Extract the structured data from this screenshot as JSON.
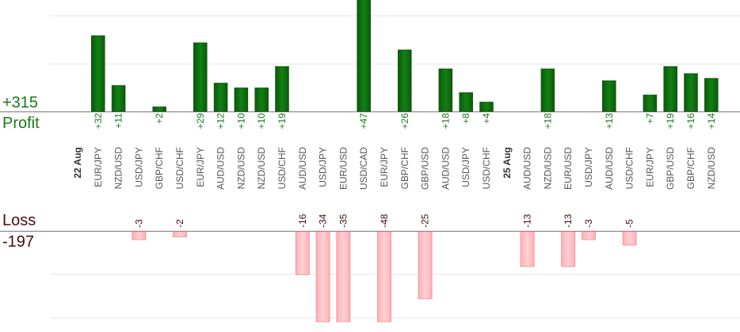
{
  "summary": {
    "profit_total": "+315",
    "profit_label": "Profit",
    "loss_label": "Loss",
    "loss_total": "-197"
  },
  "colors": {
    "profit_bar": "#0e6b0e",
    "profit_text": "#1a7a1a",
    "loss_bar": "#ffc0c4",
    "loss_bar_edge": "#ee8a92",
    "loss_text": "#3a1010",
    "loss_label": "#4a0a0a",
    "grid": "#e6e6e6",
    "axis": "#777777",
    "category_text": "#555555",
    "date_text": "#333333"
  },
  "chart_data": {
    "type": "bar",
    "title": "",
    "categories": [
      "22 Aug",
      "EUR/JPY",
      "NZD/USD",
      "USD/JPY",
      "GBP/CHF",
      "USD/CHF",
      "EUR/JPY",
      "AUD/USD",
      "NZD/USD",
      "NZD/USD",
      "USD/CHF",
      "AUD/USD",
      "USD/JPY",
      "EUR/USD",
      "USD/CAD",
      "EUR/JPY",
      "GBP/CHF",
      "GBP/USD",
      "AUD/USD",
      "USD/JPY",
      "USD/CHF",
      "25 Aug",
      "AUD/USD",
      "NZD/USD",
      "EUR/USD",
      "USD/JPY",
      "AUD/USD",
      "USD/CHF",
      "EUR/JPY",
      "GBP/USD",
      "GBP/CHF",
      "NZD/USD"
    ],
    "series": [
      {
        "values": [
          null,
          32,
          11,
          -3,
          2,
          -2,
          29,
          12,
          10,
          10,
          19,
          -16,
          -34,
          -35,
          47,
          -48,
          26,
          -25,
          18,
          8,
          4,
          null,
          -13,
          18,
          -13,
          -3,
          13,
          -5,
          7,
          19,
          16,
          14
        ]
      }
    ],
    "value_labels": [
      "",
      "+32",
      "+11",
      "-3",
      "+2",
      "-2",
      "+29",
      "+12",
      "+10",
      "+10",
      "+19",
      "-16",
      "-34",
      "-35",
      "+47",
      "-48",
      "+26",
      "-25",
      "+18",
      "+8",
      "+4",
      "",
      "-13",
      "+18",
      "-13",
      "-3",
      "+13",
      "-5",
      "+7",
      "+19",
      "+16",
      "+14"
    ],
    "date_separators": [
      "22 Aug",
      "25 Aug"
    ],
    "grid": true
  }
}
